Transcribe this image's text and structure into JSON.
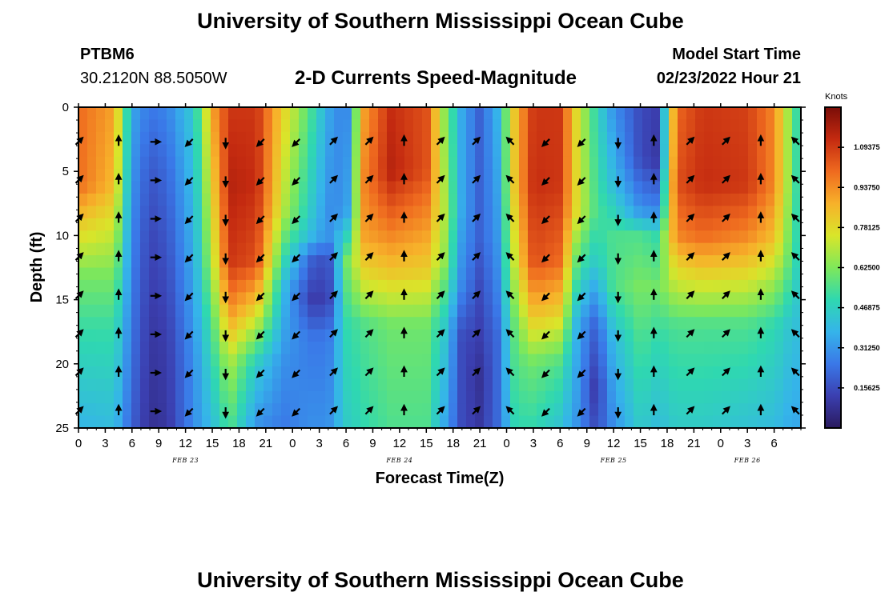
{
  "header": {
    "title": "University of Southern Mississippi Ocean Cube",
    "station": "PTBM6",
    "coords": "30.2120N  88.5050W",
    "subtitle": "2-D Currents Speed-Magnitude",
    "model_start_label": "Model Start Time",
    "model_start_value": "02/23/2022 Hour 21"
  },
  "footer": {
    "title": "University of Southern Mississippi Ocean Cube"
  },
  "chart_data": {
    "type": "heatmap",
    "title": "2-D Currents Speed-Magnitude",
    "xlabel": "Forecast Time(Z)",
    "ylabel": "Depth (ft)",
    "xlim": [
      0,
      81
    ],
    "ylim": [
      0,
      25
    ],
    "x_tick_labels": [
      "0",
      "3",
      "6",
      "9",
      "12",
      "15",
      "18",
      "21",
      "0",
      "3",
      "6",
      "9",
      "12",
      "15",
      "18",
      "21",
      "0",
      "3",
      "6",
      "9",
      "12",
      "15",
      "18",
      "21",
      "0",
      "3",
      "6"
    ],
    "y_ticks": [
      0,
      5,
      10,
      15,
      20,
      25
    ],
    "date_labels": [
      {
        "text": "FEB 23",
        "x_hours": 12
      },
      {
        "text": "FEB 24",
        "x_hours": 36
      },
      {
        "text": "FEB 25",
        "x_hours": 60
      },
      {
        "text": "FEB 26",
        "x_hours": 75
      }
    ],
    "colorbar": {
      "unit": "Knots",
      "range": [
        0,
        1.25
      ],
      "tick_labels": [
        "1.09375",
        "0.93750",
        "0.78125",
        "0.62500",
        "0.46875",
        "0.31250",
        "0.15625"
      ],
      "tick_values": [
        1.09375,
        0.9375,
        0.78125,
        0.625,
        0.46875,
        0.3125,
        0.15625
      ],
      "colors": [
        "#2a1a5e",
        "#3b3fb0",
        "#3a78e8",
        "#35b4ea",
        "#2fd8b0",
        "#7fe85a",
        "#d9e52a",
        "#f7b12a",
        "#ef6a1f",
        "#c42a10",
        "#7a0d08"
      ]
    },
    "speed_keyframes": [
      {
        "t": 0,
        "profile": [
          [
            0,
            1.0
          ],
          [
            6,
            1.0
          ],
          [
            9,
            0.82
          ],
          [
            13,
            0.62
          ],
          [
            17,
            0.52
          ],
          [
            25,
            0.38
          ]
        ]
      },
      {
        "t": 4,
        "profile": [
          [
            0,
            0.9
          ],
          [
            6,
            0.85
          ],
          [
            9,
            0.75
          ],
          [
            13,
            0.62
          ],
          [
            17,
            0.52
          ],
          [
            25,
            0.4
          ]
        ]
      },
      {
        "t": 6,
        "profile": [
          [
            0,
            0.35
          ],
          [
            10,
            0.28
          ],
          [
            18,
            0.24
          ],
          [
            25,
            0.2
          ]
        ]
      },
      {
        "t": 8,
        "profile": [
          [
            0,
            0.25
          ],
          [
            5,
            0.18
          ],
          [
            10,
            0.14
          ],
          [
            18,
            0.1
          ],
          [
            25,
            0.08
          ]
        ]
      },
      {
        "t": 10,
        "profile": [
          [
            0,
            0.28
          ],
          [
            5,
            0.22
          ],
          [
            10,
            0.18
          ],
          [
            18,
            0.12
          ],
          [
            25,
            0.1
          ]
        ]
      },
      {
        "t": 13,
        "profile": [
          [
            0,
            0.45
          ],
          [
            10,
            0.38
          ],
          [
            20,
            0.3
          ],
          [
            25,
            0.3
          ]
        ]
      },
      {
        "t": 15,
        "profile": [
          [
            0,
            0.9
          ],
          [
            6,
            0.8
          ],
          [
            12,
            0.7
          ],
          [
            17,
            0.55
          ],
          [
            25,
            0.4
          ]
        ]
      },
      {
        "t": 17,
        "profile": [
          [
            0,
            1.1
          ],
          [
            6,
            1.15
          ],
          [
            12,
            1.1
          ],
          [
            16,
            0.92
          ],
          [
            20,
            0.68
          ],
          [
            25,
            0.55
          ]
        ]
      },
      {
        "t": 20,
        "profile": [
          [
            0,
            1.1
          ],
          [
            6,
            1.12
          ],
          [
            12,
            1.05
          ],
          [
            15,
            0.85
          ],
          [
            20,
            0.45
          ],
          [
            25,
            0.3
          ]
        ]
      },
      {
        "t": 23,
        "profile": [
          [
            0,
            0.8
          ],
          [
            8,
            0.7
          ],
          [
            14,
            0.4
          ],
          [
            20,
            0.3
          ],
          [
            25,
            0.25
          ]
        ]
      },
      {
        "t": 26,
        "profile": [
          [
            0,
            0.55
          ],
          [
            8,
            0.45
          ],
          [
            10,
            0.4
          ],
          [
            12,
            0.2
          ],
          [
            15,
            0.12
          ],
          [
            18,
            0.25
          ],
          [
            25,
            0.3
          ]
        ]
      },
      {
        "t": 28,
        "profile": [
          [
            0,
            0.35
          ],
          [
            8,
            0.3
          ],
          [
            10,
            0.3
          ],
          [
            12,
            0.15
          ],
          [
            15,
            0.12
          ],
          [
            18,
            0.25
          ],
          [
            25,
            0.3
          ]
        ]
      },
      {
        "t": 30,
        "profile": [
          [
            0,
            0.25
          ],
          [
            8,
            0.3
          ],
          [
            12,
            0.6
          ],
          [
            17,
            0.5
          ],
          [
            25,
            0.45
          ]
        ]
      },
      {
        "t": 32,
        "profile": [
          [
            0,
            0.9
          ],
          [
            6,
            0.95
          ],
          [
            10,
            0.9
          ],
          [
            13,
            0.78
          ],
          [
            17,
            0.55
          ],
          [
            25,
            0.5
          ]
        ]
      },
      {
        "t": 35,
        "profile": [
          [
            0,
            1.12
          ],
          [
            5,
            1.15
          ],
          [
            10,
            0.95
          ],
          [
            13,
            0.82
          ],
          [
            17,
            0.6
          ],
          [
            25,
            0.55
          ]
        ]
      },
      {
        "t": 39,
        "profile": [
          [
            0,
            1.05
          ],
          [
            5,
            1.05
          ],
          [
            10,
            0.9
          ],
          [
            13,
            0.8
          ],
          [
            17,
            0.6
          ],
          [
            25,
            0.55
          ]
        ]
      },
      {
        "t": 41,
        "profile": [
          [
            0,
            0.65
          ],
          [
            8,
            0.7
          ],
          [
            12,
            0.65
          ],
          [
            17,
            0.45
          ],
          [
            25,
            0.35
          ]
        ]
      },
      {
        "t": 43,
        "profile": [
          [
            0,
            0.35
          ],
          [
            8,
            0.35
          ],
          [
            14,
            0.28
          ],
          [
            18,
            0.15
          ],
          [
            25,
            0.15
          ]
        ]
      },
      {
        "t": 45,
        "profile": [
          [
            0,
            0.2
          ],
          [
            10,
            0.2
          ],
          [
            14,
            0.15
          ],
          [
            18,
            0.12
          ],
          [
            21,
            0.08
          ],
          [
            25,
            0.1
          ]
        ]
      },
      {
        "t": 47,
        "profile": [
          [
            0,
            0.38
          ],
          [
            10,
            0.32
          ],
          [
            14,
            0.28
          ],
          [
            18,
            0.22
          ],
          [
            25,
            0.22
          ]
        ]
      },
      {
        "t": 49,
        "profile": [
          [
            0,
            0.85
          ],
          [
            6,
            0.85
          ],
          [
            12,
            0.75
          ],
          [
            17,
            0.6
          ],
          [
            25,
            0.5
          ]
        ]
      },
      {
        "t": 51,
        "profile": [
          [
            0,
            1.1
          ],
          [
            6,
            1.12
          ],
          [
            12,
            1.05
          ],
          [
            16,
            0.85
          ],
          [
            20,
            0.6
          ],
          [
            25,
            0.5
          ]
        ]
      },
      {
        "t": 54,
        "profile": [
          [
            0,
            1.1
          ],
          [
            6,
            1.1
          ],
          [
            12,
            1.0
          ],
          [
            16,
            0.8
          ],
          [
            20,
            0.55
          ],
          [
            25,
            0.42
          ]
        ]
      },
      {
        "t": 56,
        "profile": [
          [
            0,
            0.75
          ],
          [
            8,
            0.75
          ],
          [
            12,
            0.55
          ],
          [
            17,
            0.35
          ],
          [
            25,
            0.3
          ]
        ]
      },
      {
        "t": 58,
        "profile": [
          [
            0,
            0.5
          ],
          [
            8,
            0.55
          ],
          [
            12,
            0.45
          ],
          [
            17,
            0.2
          ],
          [
            22,
            0.1
          ],
          [
            25,
            0.15
          ]
        ]
      },
      {
        "t": 60,
        "profile": [
          [
            0,
            0.3
          ],
          [
            6,
            0.4
          ],
          [
            10,
            0.55
          ],
          [
            14,
            0.55
          ],
          [
            18,
            0.4
          ],
          [
            25,
            0.3
          ]
        ]
      },
      {
        "t": 63,
        "profile": [
          [
            0,
            0.15
          ],
          [
            4,
            0.15
          ],
          [
            8,
            0.3
          ],
          [
            10,
            0.55
          ],
          [
            14,
            0.62
          ],
          [
            18,
            0.55
          ],
          [
            25,
            0.45
          ]
        ]
      },
      {
        "t": 65,
        "profile": [
          [
            0,
            0.12
          ],
          [
            4,
            0.1
          ],
          [
            8,
            0.28
          ],
          [
            10,
            0.5
          ],
          [
            14,
            0.6
          ],
          [
            18,
            0.5
          ],
          [
            25,
            0.4
          ]
        ]
      },
      {
        "t": 67,
        "profile": [
          [
            0,
            1.0
          ],
          [
            6,
            1.05
          ],
          [
            10,
            0.95
          ],
          [
            12,
            0.82
          ],
          [
            17,
            0.55
          ],
          [
            25,
            0.45
          ]
        ]
      },
      {
        "t": 70,
        "profile": [
          [
            0,
            1.1
          ],
          [
            6,
            1.12
          ],
          [
            10,
            1.0
          ],
          [
            13,
            0.8
          ],
          [
            17,
            0.55
          ],
          [
            25,
            0.45
          ]
        ]
      },
      {
        "t": 75,
        "profile": [
          [
            0,
            1.08
          ],
          [
            6,
            1.1
          ],
          [
            10,
            0.95
          ],
          [
            13,
            0.78
          ],
          [
            17,
            0.55
          ],
          [
            25,
            0.42
          ]
        ]
      },
      {
        "t": 78,
        "profile": [
          [
            0,
            0.95
          ],
          [
            6,
            0.95
          ],
          [
            10,
            0.85
          ],
          [
            13,
            0.7
          ],
          [
            17,
            0.5
          ],
          [
            25,
            0.4
          ]
        ]
      },
      {
        "t": 80,
        "profile": [
          [
            0,
            0.6
          ],
          [
            6,
            0.6
          ],
          [
            12,
            0.55
          ],
          [
            17,
            0.42
          ],
          [
            25,
            0.35
          ]
        ]
      },
      {
        "t": 81,
        "profile": [
          [
            0,
            0.45
          ],
          [
            10,
            0.45
          ],
          [
            18,
            0.4
          ],
          [
            25,
            0.35
          ]
        ]
      }
    ],
    "vector_depths": [
      2.7,
      5.7,
      8.7,
      11.7,
      14.7,
      17.7,
      20.7,
      23.7
    ],
    "vector_columns": [
      {
        "t": 0,
        "dir": "ne"
      },
      {
        "t": 4.5,
        "dir": "n"
      },
      {
        "t": 8.5,
        "dir": "e"
      },
      {
        "t": 12.5,
        "dir": "sw"
      },
      {
        "t": 16.5,
        "dir": "s"
      },
      {
        "t": 20.5,
        "dir": "sw"
      },
      {
        "t": 24.5,
        "dir": "sw"
      },
      {
        "t": 28.5,
        "dir": "ne"
      },
      {
        "t": 32.5,
        "dir": "ne"
      },
      {
        "t": 36.5,
        "dir": "n"
      },
      {
        "t": 40.5,
        "dir": "ne"
      },
      {
        "t": 44.5,
        "dir": "ne"
      },
      {
        "t": 48.5,
        "dir": "nw"
      },
      {
        "t": 52.5,
        "dir": "sw"
      },
      {
        "t": 56.5,
        "dir": "sw"
      },
      {
        "t": 60.5,
        "dir": "s"
      },
      {
        "t": 64.5,
        "dir": "n"
      },
      {
        "t": 68.5,
        "dir": "ne"
      },
      {
        "t": 72.5,
        "dir": "ne"
      },
      {
        "t": 76.5,
        "dir": "n"
      },
      {
        "t": 80.5,
        "dir": "nw"
      }
    ]
  }
}
